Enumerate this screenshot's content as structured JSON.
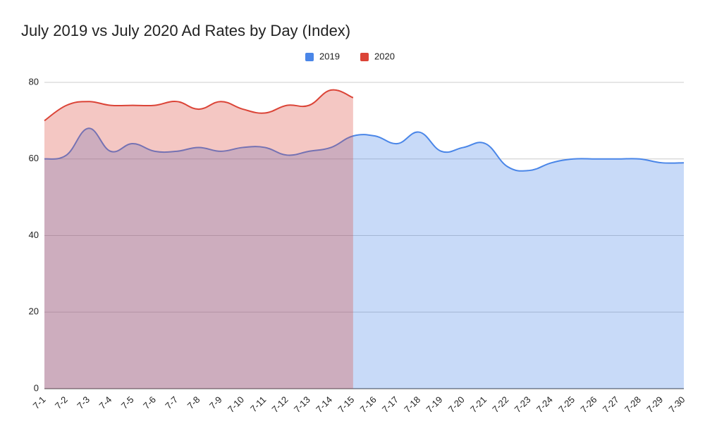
{
  "chart_data": {
    "type": "area",
    "title": "July 2019 vs July 2020 Ad Rates by Day (Index)",
    "categories": [
      "7-1",
      "7-2",
      "7-3",
      "7-4",
      "7-5",
      "7-6",
      "7-7",
      "7-8",
      "7-9",
      "7-10",
      "7-11",
      "7-12",
      "7-13",
      "7-14",
      "7-15",
      "7-16",
      "7-17",
      "7-18",
      "7-19",
      "7-20",
      "7-21",
      "7-22",
      "7-23",
      "7-24",
      "7-25",
      "7-26",
      "7-27",
      "7-28",
      "7-29",
      "7-30"
    ],
    "series": [
      {
        "name": "2019",
        "color": "#4a86e8",
        "values": [
          60,
          61,
          68,
          62,
          64,
          62,
          62,
          63,
          62,
          63,
          63,
          61,
          62,
          63,
          66,
          66,
          64,
          67,
          62,
          63,
          64,
          58,
          57,
          59,
          60,
          60,
          60,
          60,
          59,
          59
        ]
      },
      {
        "name": "2020",
        "color": "#db4437",
        "values": [
          70,
          74,
          75,
          74,
          74,
          74,
          75,
          73,
          75,
          73,
          72,
          74,
          74,
          78,
          76,
          null,
          null,
          null,
          null,
          null,
          null,
          null,
          null,
          null,
          null,
          null,
          null,
          null,
          null,
          null
        ]
      }
    ],
    "ylim": [
      0,
      80
    ],
    "yticks": [
      0,
      20,
      40,
      60,
      80
    ],
    "grid": true,
    "legend": "top"
  }
}
